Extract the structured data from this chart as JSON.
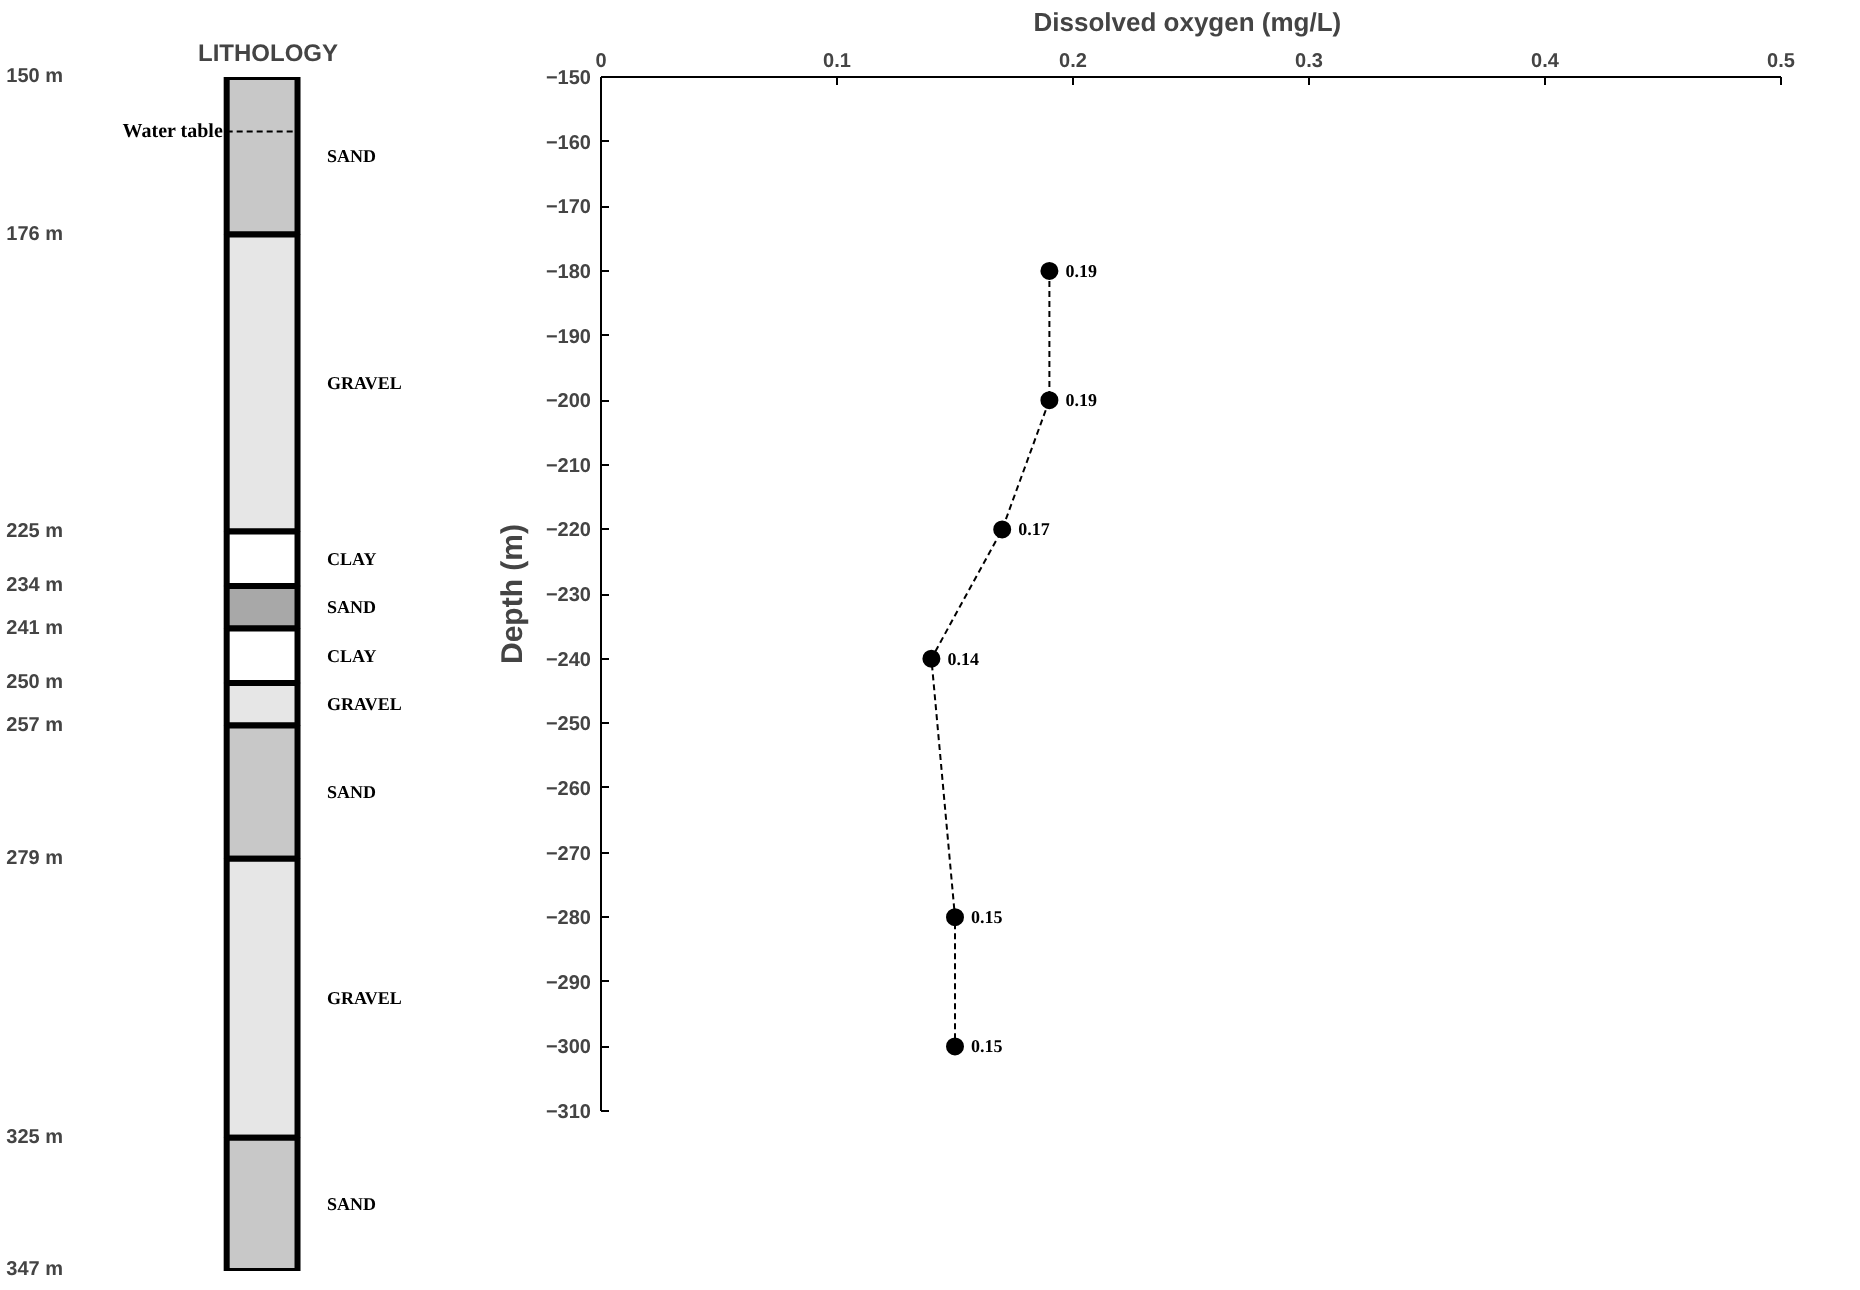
{
  "chart_data": [
    {
      "type": "bar",
      "title": "LITHOLOGY",
      "categories": [
        null
      ],
      "series": [
        {
          "name": "SAND",
          "color": "#c8c8c8",
          "base": [
            150
          ],
          "values": [
            26
          ]
        },
        {
          "name": "GRAVEL",
          "color": "#e6e6e6",
          "base": [
            176
          ],
          "values": [
            49
          ]
        },
        {
          "name": "CLAY",
          "color": "#ffffff",
          "base": [
            225
          ],
          "values": [
            9
          ]
        },
        {
          "name": "SAND",
          "color": "#a8a8a8",
          "base": [
            234
          ],
          "values": [
            7
          ]
        },
        {
          "name": "CLAY",
          "color": "#ffffff",
          "base": [
            241
          ],
          "values": [
            9
          ]
        },
        {
          "name": "GRAVEL",
          "color": "#e6e6e6",
          "base": [
            250
          ],
          "values": [
            7
          ]
        },
        {
          "name": "SAND",
          "color": "#c8c8c8",
          "base": [
            257
          ],
          "values": [
            22
          ]
        },
        {
          "name": "GRAVEL",
          "color": "#e6e6e6",
          "base": [
            279
          ],
          "values": [
            46
          ]
        },
        {
          "name": "SAND",
          "color": "#c8c8c8",
          "base": [
            325
          ],
          "values": [
            22
          ]
        }
      ],
      "ylim": [
        347,
        150
      ],
      "yticks": [
        {
          "value": 150,
          "label": "150 m"
        },
        {
          "value": 176,
          "label": "176 m"
        },
        {
          "value": 225,
          "label": "225 m"
        },
        {
          "value": 234,
          "label": "234 m"
        },
        {
          "value": 241,
          "label": "241 m"
        },
        {
          "value": 250,
          "label": "250 m"
        },
        {
          "value": 257,
          "label": "257 m"
        },
        {
          "value": 279,
          "label": "279 m"
        },
        {
          "value": 325,
          "label": "325 m"
        },
        {
          "value": 347,
          "label": "347 m"
        }
      ],
      "ref_lines": [
        {
          "axis": "y",
          "value": 159,
          "label": "Water table",
          "line_style": "dashed"
        }
      ]
    },
    {
      "type": "line",
      "xlabel": "Dissolved oxygen  (mg/L)",
      "ylabel": "Depth (m)",
      "series": [
        {
          "color": "#000000",
          "x": [
            0.19,
            0.19,
            0.17,
            0.14,
            0.15,
            0.15
          ],
          "values": [
            -180,
            -200,
            -220,
            -240,
            -280,
            -300
          ]
        }
      ],
      "annotations": [
        {
          "text": "0.19",
          "x": 0.19,
          "y": -180
        },
        {
          "text": "0.19",
          "x": 0.19,
          "y": -200
        },
        {
          "text": "0.17",
          "x": 0.17,
          "y": -220
        },
        {
          "text": "0.14",
          "x": 0.14,
          "y": -240
        },
        {
          "text": "0.15",
          "x": 0.15,
          "y": -280
        },
        {
          "text": "0.15",
          "x": 0.15,
          "y": -300
        }
      ],
      "xlim": [
        0,
        0.5
      ],
      "xticks": [
        0,
        0.1,
        0.2,
        0.3,
        0.4,
        0.5
      ],
      "ylim": [
        -310,
        -150
      ],
      "yticks": [
        -150,
        -160,
        -170,
        -180,
        -190,
        -200,
        -210,
        -220,
        -230,
        -240,
        -250,
        -260,
        -270,
        -280,
        -290,
        -300,
        -310
      ],
      "marker": "circle",
      "line_style": "dashed"
    }
  ]
}
